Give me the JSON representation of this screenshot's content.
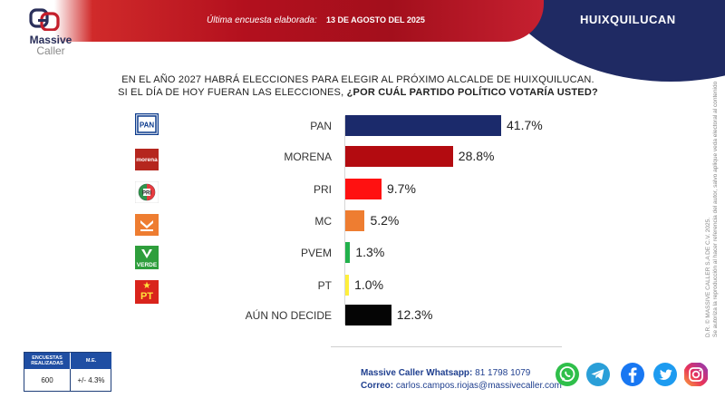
{
  "header": {
    "survey_label": "Última encuesta elaborada:",
    "survey_date": "13 DE AGOSTO DEL 2025",
    "city": "HUIXQUILUCAN"
  },
  "logo": {
    "line1": "Massive",
    "line2": "Caller"
  },
  "question": {
    "line1": "EN EL AÑO 2027 HABRÁ ELECCIONES PARA ELEGIR AL PRÓXIMO ALCALDE DE HUIXQUILUCAN.",
    "line2_plain": "SI EL DÍA DE HOY FUERAN LAS ELECCIONES, ",
    "line2_bold": "¿POR CUÁL PARTIDO POLÍTICO VOTARÍA USTED?"
  },
  "party_logos": {
    "PAN": "PAN",
    "MORENA": "morena",
    "PRI": "PRI",
    "PVEM": "VERDE",
    "PT": "PT"
  },
  "chart_data": {
    "type": "bar",
    "orientation": "horizontal",
    "categories": [
      "PAN",
      "MORENA",
      "PRI",
      "MC",
      "PVEM",
      "PT",
      "AÚN NO DECIDE"
    ],
    "values": [
      41.7,
      28.8,
      9.7,
      5.2,
      1.3,
      1.0,
      12.3
    ],
    "value_labels": [
      "41.7%",
      "28.8%",
      "9.7%",
      "5.2%",
      "1.3%",
      "1.0%",
      "12.3%"
    ],
    "colors": [
      "#1b2a6b",
      "#b30b10",
      "#ff1111",
      "#ee7d31",
      "#22b14c",
      "#ffef3b",
      "#050505"
    ],
    "unit": "%"
  },
  "side_note": {
    "line1": "D.R. © MASSIVE CALLER S.A DE C.V. 2025.",
    "line2": "Se autoriza la reproducción al hacer referencia del autor, salvo aplique veda electoral al contenido"
  },
  "footer_table": {
    "col1_header": "ENCUESTAS REALIZADAS",
    "col2_header": "M.E.",
    "col1_value": "600",
    "col2_value": "+/- 4.3%"
  },
  "contact": {
    "whatsapp_label": "Massive Caller Whatsapp:",
    "whatsapp_number": "81 1798 1079",
    "email_label": "Correo:",
    "email": "carlos.campos.riojas@massivecaller.com"
  },
  "social_icons": [
    "whatsapp-icon",
    "telegram-icon",
    "facebook-icon",
    "twitter-icon",
    "instagram-icon"
  ]
}
